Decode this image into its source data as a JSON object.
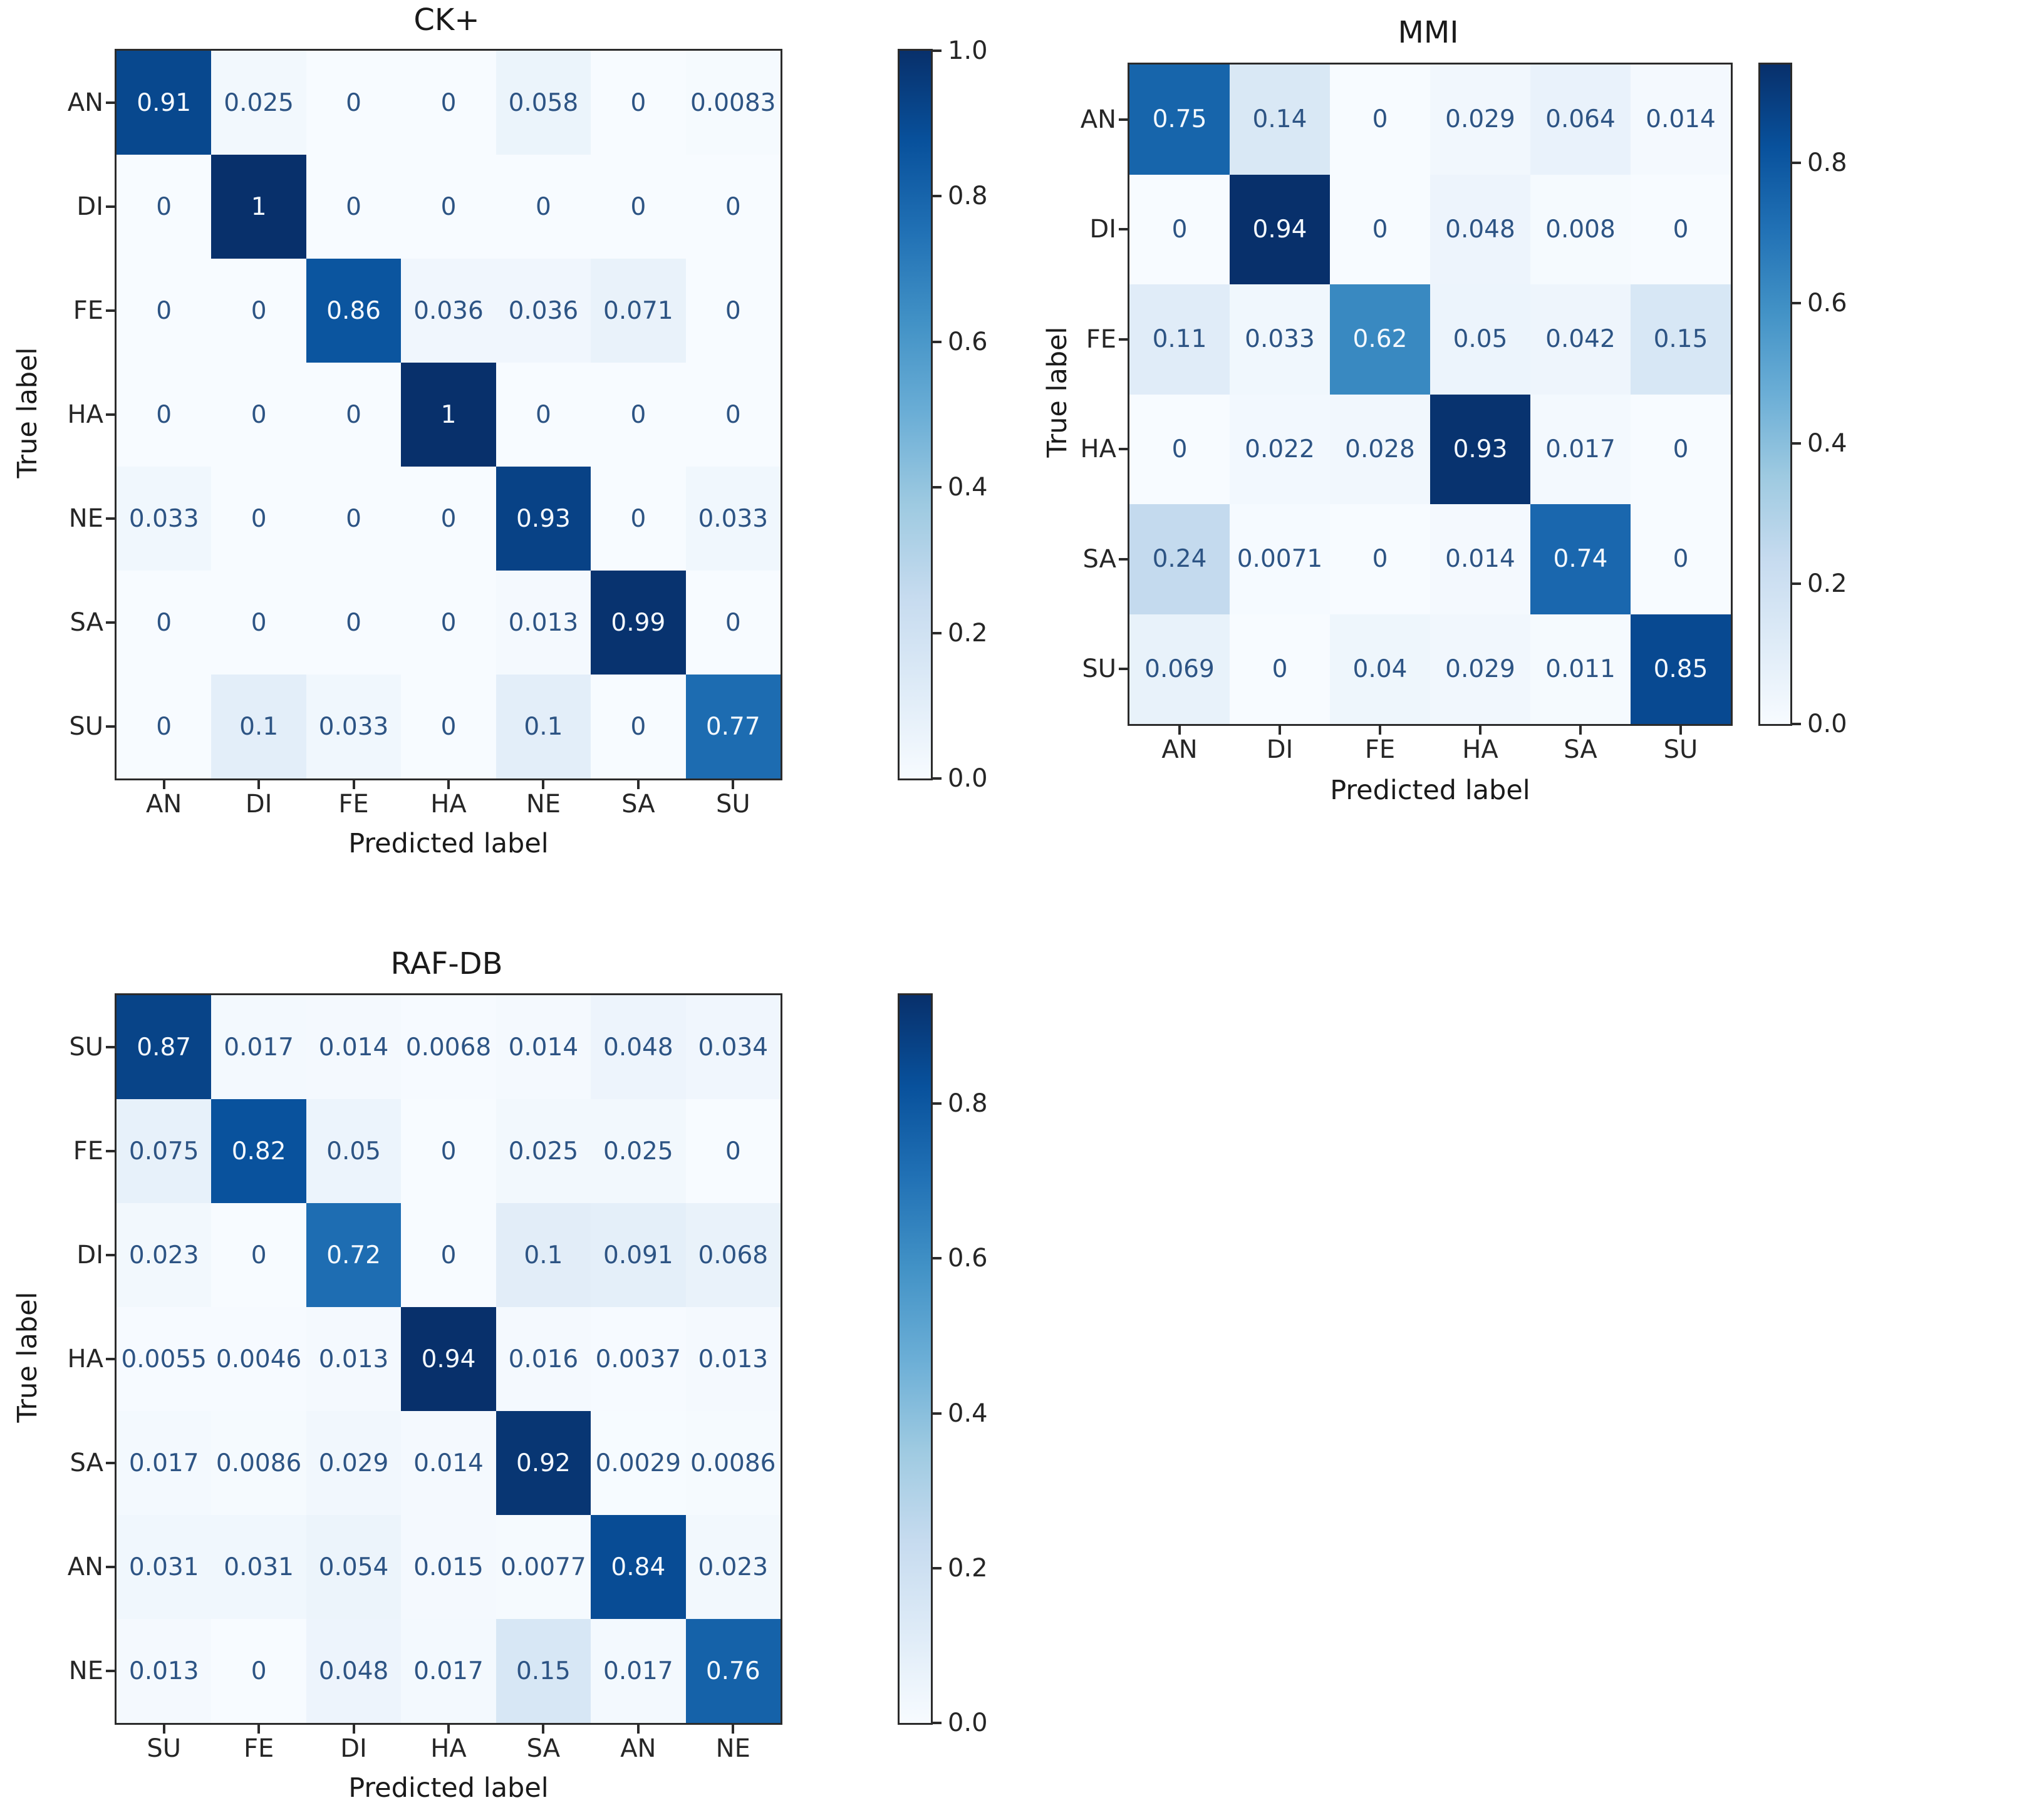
{
  "figure": {
    "background_color": "#ffffff",
    "axis_text_color": "#1a1a1a",
    "cell_text_dark": "#2d5484",
    "cell_text_light": "#f4f9fe",
    "colormap": "Blues",
    "colormap_min_color": "#f7fbff",
    "colormap_max_color": "#08306b"
  },
  "chart_data": [
    {
      "type": "heatmap",
      "title": "CK+",
      "xlabel": "Predicted label",
      "ylabel": "True label",
      "row_labels": [
        "AN",
        "DI",
        "FE",
        "HA",
        "NE",
        "SA",
        "SU"
      ],
      "col_labels": [
        "AN",
        "DI",
        "FE",
        "HA",
        "NE",
        "SA",
        "SU"
      ],
      "values": [
        [
          "0.91",
          "0.025",
          "0",
          "0",
          "0.058",
          "0",
          "0.0083"
        ],
        [
          "0",
          "1",
          "0",
          "0",
          "0",
          "0",
          "0"
        ],
        [
          "0",
          "0",
          "0.86",
          "0.036",
          "0.036",
          "0.071",
          "0"
        ],
        [
          "0",
          "0",
          "0",
          "1",
          "0",
          "0",
          "0"
        ],
        [
          "0.033",
          "0",
          "0",
          "0",
          "0.93",
          "0",
          "0.033"
        ],
        [
          "0",
          "0",
          "0",
          "0",
          "0.013",
          "0.99",
          "0"
        ],
        [
          "0",
          "0.1",
          "0.033",
          "0",
          "0.1",
          "0",
          "0.77"
        ]
      ],
      "vmin": 0,
      "vmax": 1.0,
      "grid": false,
      "legend_position": "right-colorbar",
      "colorbar_ticks": [
        {
          "label": "1.0",
          "value": 1.0
        },
        {
          "label": "0.8",
          "value": 0.8
        },
        {
          "label": "0.6",
          "value": 0.6
        },
        {
          "label": "0.4",
          "value": 0.4
        },
        {
          "label": "0.2",
          "value": 0.2
        },
        {
          "label": "0.0",
          "value": 0.0
        }
      ]
    },
    {
      "type": "heatmap",
      "title": "MMI",
      "xlabel": "Predicted label",
      "ylabel": "True label",
      "row_labels": [
        "AN",
        "DI",
        "FE",
        "HA",
        "SA",
        "SU"
      ],
      "col_labels": [
        "AN",
        "DI",
        "FE",
        "HA",
        "SA",
        "SU"
      ],
      "values": [
        [
          "0.75",
          "0.14",
          "0",
          "0.029",
          "0.064",
          "0.014"
        ],
        [
          "0",
          "0.94",
          "0",
          "0.048",
          "0.008",
          "0"
        ],
        [
          "0.11",
          "0.033",
          "0.62",
          "0.05",
          "0.042",
          "0.15"
        ],
        [
          "0",
          "0.022",
          "0.028",
          "0.93",
          "0.017",
          "0"
        ],
        [
          "0.24",
          "0.0071",
          "0",
          "0.014",
          "0.74",
          "0"
        ],
        [
          "0.069",
          "0",
          "0.04",
          "0.029",
          "0.011",
          "0.85"
        ]
      ],
      "vmin": 0,
      "vmax": 0.94,
      "grid": false,
      "legend_position": "right-colorbar",
      "colorbar_ticks": [
        {
          "label": "0.8",
          "value": 0.8
        },
        {
          "label": "0.6",
          "value": 0.6
        },
        {
          "label": "0.4",
          "value": 0.4
        },
        {
          "label": "0.2",
          "value": 0.2
        },
        {
          "label": "0.0",
          "value": 0.0
        }
      ]
    },
    {
      "type": "heatmap",
      "title": "RAF-DB",
      "xlabel": "Predicted label",
      "ylabel": "True label",
      "row_labels": [
        "SU",
        "FE",
        "DI",
        "HA",
        "SA",
        "AN",
        "NE"
      ],
      "col_labels": [
        "SU",
        "FE",
        "DI",
        "HA",
        "SA",
        "AN",
        "NE"
      ],
      "values": [
        [
          "0.87",
          "0.017",
          "0.014",
          "0.0068",
          "0.014",
          "0.048",
          "0.034"
        ],
        [
          "0.075",
          "0.82",
          "0.05",
          "0",
          "0.025",
          "0.025",
          "0"
        ],
        [
          "0.023",
          "0",
          "0.72",
          "0",
          "0.1",
          "0.091",
          "0.068"
        ],
        [
          "0.0055",
          "0.0046",
          "0.013",
          "0.94",
          "0.016",
          "0.0037",
          "0.013"
        ],
        [
          "0.017",
          "0.0086",
          "0.029",
          "0.014",
          "0.92",
          "0.0029",
          "0.0086"
        ],
        [
          "0.031",
          "0.031",
          "0.054",
          "0.015",
          "0.0077",
          "0.84",
          "0.023"
        ],
        [
          "0.013",
          "0",
          "0.048",
          "0.017",
          "0.15",
          "0.017",
          "0.76"
        ]
      ],
      "vmin": 0,
      "vmax": 0.94,
      "grid": false,
      "legend_position": "right-colorbar",
      "colorbar_ticks": [
        {
          "label": "0.8",
          "value": 0.8
        },
        {
          "label": "0.6",
          "value": 0.6
        },
        {
          "label": "0.4",
          "value": 0.4
        },
        {
          "label": "0.2",
          "value": 0.2
        },
        {
          "label": "0.0",
          "value": 0.0
        }
      ]
    }
  ]
}
